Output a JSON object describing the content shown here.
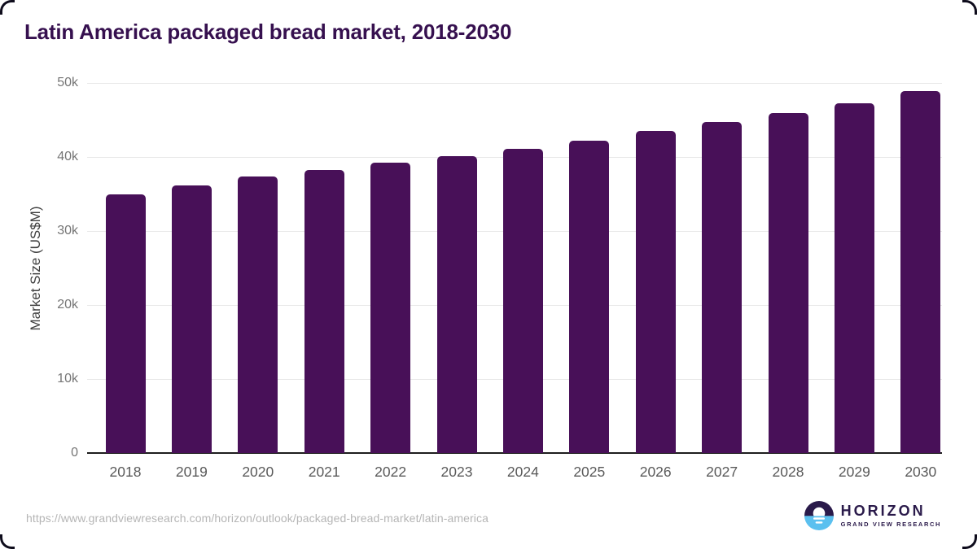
{
  "title": "Latin America packaged bread market, 2018-2030",
  "source_url": "https://www.grandviewresearch.com/horizon/outlook/packaged-bread-market/latin-america",
  "logo": {
    "brand": "HORIZON",
    "subtitle": "GRAND VIEW RESEARCH",
    "icon": "horizon-sun-over-water-icon",
    "navy": "#2a1a4a",
    "blue": "#5bc0ef"
  },
  "chart_data": {
    "type": "bar",
    "title": "Latin America packaged bread market, 2018-2030",
    "categories": [
      "2018",
      "2019",
      "2020",
      "2021",
      "2022",
      "2023",
      "2024",
      "2025",
      "2026",
      "2027",
      "2028",
      "2029",
      "2030"
    ],
    "values": [
      35000,
      36200,
      37400,
      38200,
      39200,
      40100,
      41100,
      42200,
      43500,
      44700,
      45900,
      47300,
      48900
    ],
    "unit": "US$M",
    "xlabel": "",
    "ylabel": "Market Size (US$M)",
    "ylim": [
      0,
      50000
    ],
    "yticks": [
      {
        "value": 0,
        "label": "0"
      },
      {
        "value": 10000,
        "label": "10k"
      },
      {
        "value": 20000,
        "label": "20k"
      },
      {
        "value": 30000,
        "label": "30k"
      },
      {
        "value": 40000,
        "label": "40k"
      },
      {
        "value": 50000,
        "label": "50k"
      }
    ],
    "grid": "horizontal",
    "legend": "none",
    "bar_color": "#481058"
  }
}
